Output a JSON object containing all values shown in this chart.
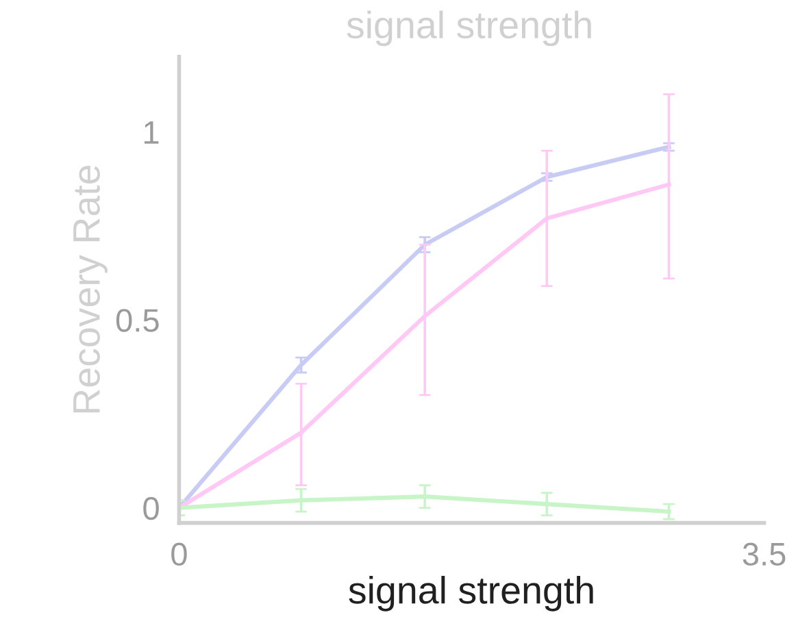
{
  "chart_data": {
    "type": "line",
    "xlabel": "signal strength",
    "ylabel": "Recovery Rate",
    "annotations": [
      "signal strength"
    ],
    "x": [
      0,
      0.73,
      1.47,
      2.2,
      2.93
    ],
    "series": [
      {
        "color": "#c8ccf5",
        "values": [
          0.0,
          0.38,
          0.7,
          0.88,
          0.96
        ],
        "errors": [
          0.02,
          0.02,
          0.02,
          0.01,
          0.01
        ]
      },
      {
        "color": "#ffc8f5",
        "values": [
          0.0,
          0.2,
          0.51,
          0.77,
          0.86
        ],
        "errors": [
          0.02,
          [
            0.06,
            0.33
          ],
          [
            0.3,
            0.7
          ],
          [
            0.59,
            0.95
          ],
          [
            0.61,
            1.1
          ]
        ]
      },
      {
        "color": "#c8f5c8",
        "values": [
          0.0,
          0.02,
          0.03,
          0.01,
          -0.01
        ],
        "errors": [
          0.02,
          0.03,
          0.03,
          0.03,
          0.02
        ]
      }
    ],
    "xlim": [
      0,
      3.5
    ],
    "xticks": [
      0,
      3.5
    ],
    "ylim": [
      -0.04,
      1.2
    ],
    "yticks": [
      0,
      0.5,
      1
    ],
    "grid": false,
    "legend": false,
    "marker": "none",
    "line_style": "solid"
  }
}
